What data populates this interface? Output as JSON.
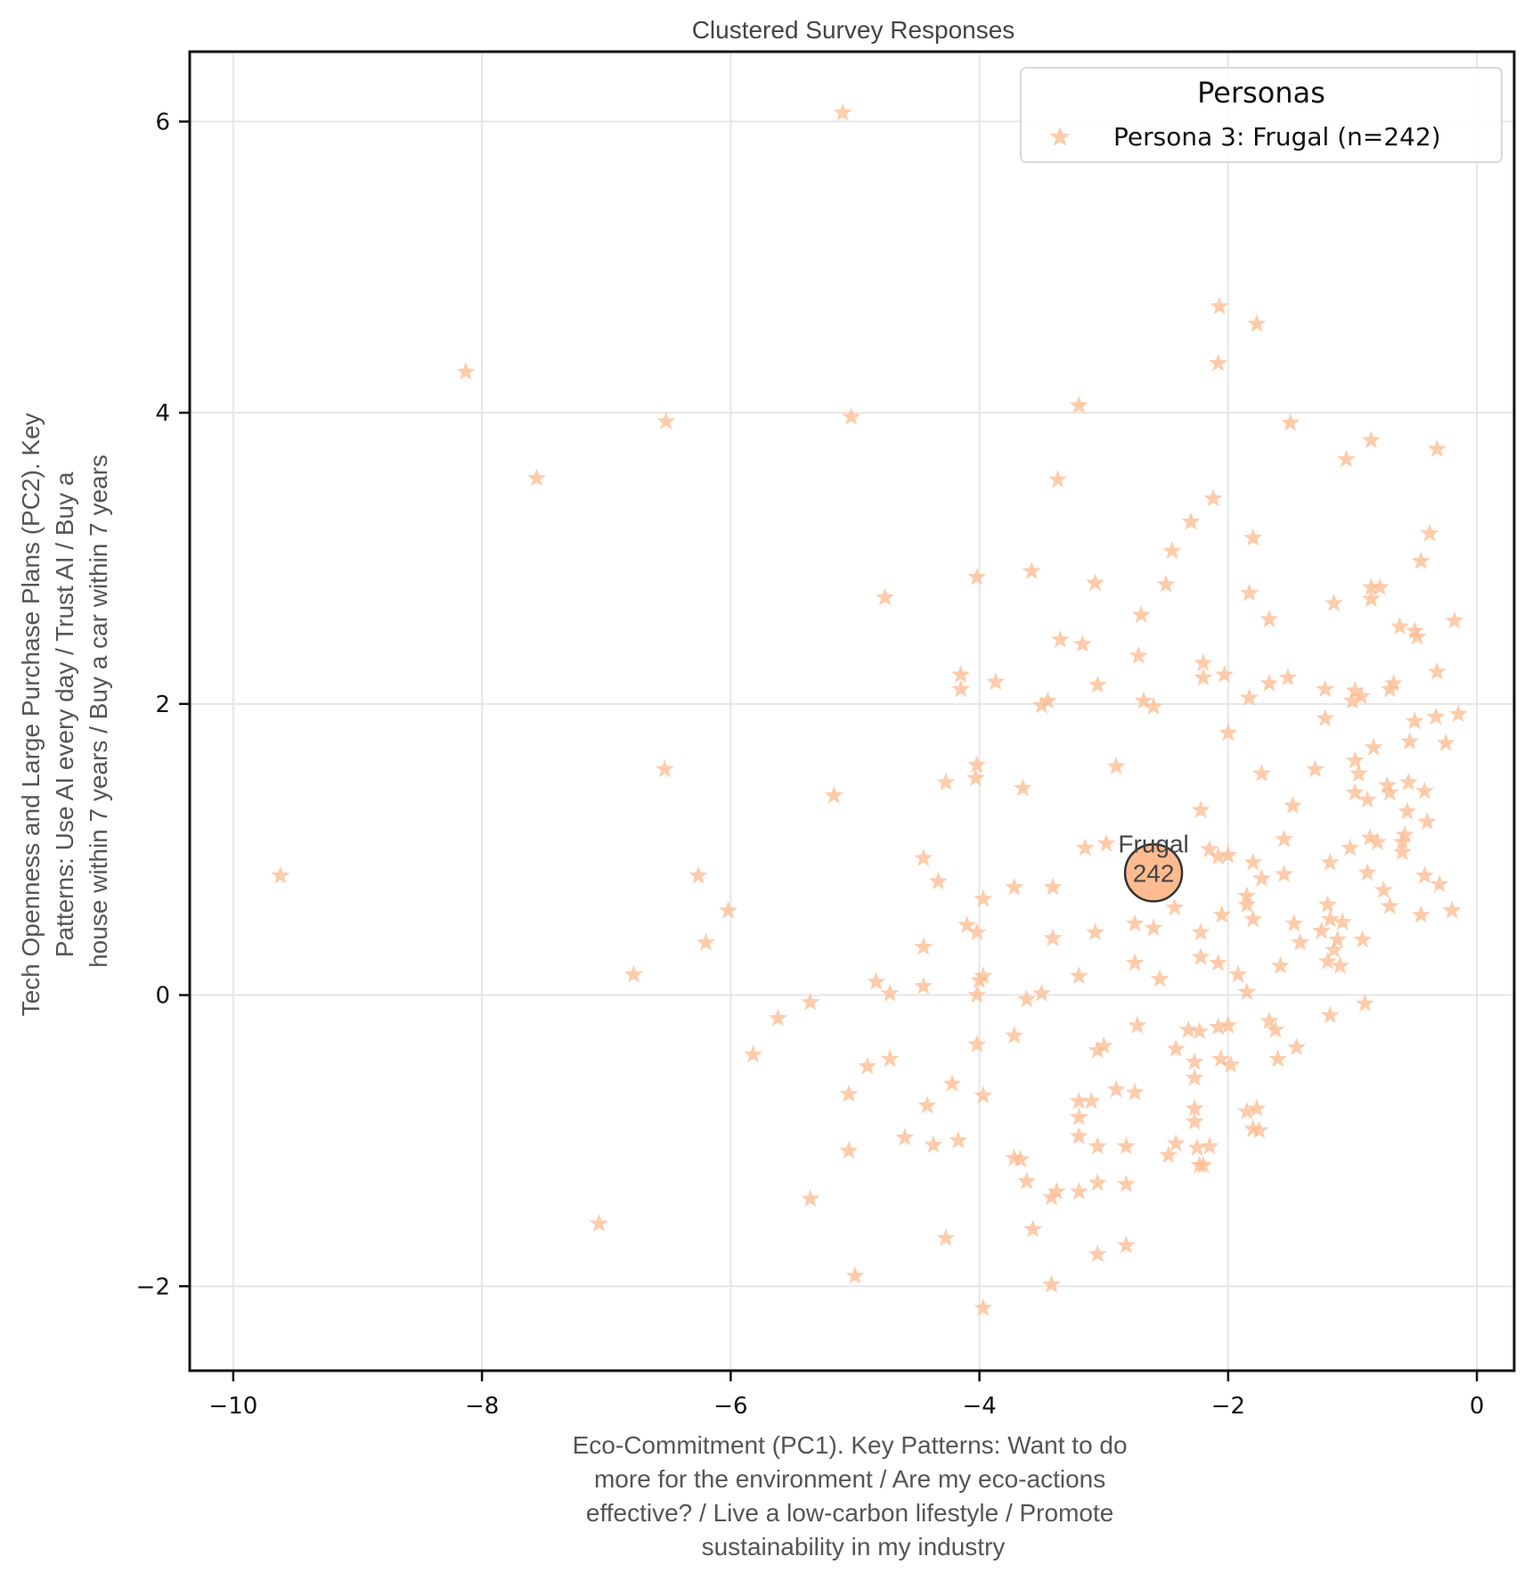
{
  "chart_data": {
    "type": "scatter",
    "title": "Clustered Survey Responses",
    "xlabel_lines": [
      "Eco-Commitment (PC1). Key Patterns: Want to do",
      "more for the environment / Are my eco-actions",
      "effective? / Live a low-carbon lifestyle / Promote",
      "sustainability in my industry"
    ],
    "ylabel_lines": [
      "Tech Openness and Large Purchase Plans (PC2). Key",
      "Patterns: Use AI every day / Trust AI / Buy a",
      "house within 7 years / Buy a car within 7 years"
    ],
    "xlim": [
      -10.35,
      0.3
    ],
    "ylim": [
      -2.58,
      6.48
    ],
    "xticks": [
      -10,
      -8,
      -6,
      -4,
      -2,
      0
    ],
    "xtick_labels": [
      "−10",
      "−8",
      "−6",
      "−4",
      "−2",
      "0"
    ],
    "yticks": [
      -2,
      0,
      2,
      4,
      6
    ],
    "ytick_labels": [
      "−2",
      "0",
      "2",
      "4",
      "6"
    ],
    "grid": true,
    "legend": {
      "title": "Personas",
      "placement": "top-right",
      "entries": [
        {
          "label": "Persona 3: Frugal (n=242)",
          "color": "#fdbb8f",
          "marker": "star"
        }
      ]
    },
    "series": [
      {
        "name": "Persona 3: Frugal (n=242)",
        "color": "#fdbb8f",
        "marker": "star",
        "points": [
          [
            -5.1,
            6.06
          ],
          [
            -8.13,
            4.28
          ],
          [
            -6.52,
            3.94
          ],
          [
            -5.03,
            3.97
          ],
          [
            -7.56,
            3.55
          ],
          [
            -9.62,
            0.82
          ],
          [
            -6.53,
            1.55
          ],
          [
            -6.26,
            0.82
          ],
          [
            -6.02,
            0.58
          ],
          [
            -6.2,
            0.36
          ],
          [
            -6.78,
            0.14
          ],
          [
            -7.06,
            -1.57
          ],
          [
            -5.82,
            -0.41
          ],
          [
            -5.62,
            -0.16
          ],
          [
            -5.36,
            -0.05
          ],
          [
            -5.17,
            1.37
          ],
          [
            -4.76,
            2.73
          ],
          [
            -5.05,
            -0.68
          ],
          [
            -5.05,
            -1.07
          ],
          [
            -5.0,
            -1.93
          ],
          [
            -5.36,
            -1.4
          ],
          [
            -4.9,
            -0.49
          ],
          [
            -4.83,
            0.09
          ],
          [
            -4.72,
            0.01
          ],
          [
            -4.72,
            -0.44
          ],
          [
            -4.6,
            -0.98
          ],
          [
            -4.45,
            0.94
          ],
          [
            -4.33,
            0.78
          ],
          [
            -4.45,
            0.33
          ],
          [
            -4.45,
            0.06
          ],
          [
            -4.42,
            -0.76
          ],
          [
            -4.37,
            -1.03
          ],
          [
            -4.27,
            -1.67
          ],
          [
            -4.27,
            1.46
          ],
          [
            -4.22,
            -0.61
          ],
          [
            -4.17,
            -1.0
          ],
          [
            -4.15,
            2.2
          ],
          [
            -4.15,
            2.1
          ],
          [
            -4.1,
            0.48
          ],
          [
            -4.03,
            1.49
          ],
          [
            -4.02,
            1.58
          ],
          [
            -4.02,
            2.87
          ],
          [
            -4.02,
            0.43
          ],
          [
            -4.0,
            0.1
          ],
          [
            -3.97,
            0.13
          ],
          [
            -3.97,
            0.66
          ],
          [
            -4.02,
            0.0
          ],
          [
            -4.02,
            -0.34
          ],
          [
            -3.97,
            -0.69
          ],
          [
            -3.97,
            -2.15
          ],
          [
            -3.87,
            2.15
          ],
          [
            -3.72,
            0.74
          ],
          [
            -3.72,
            -0.28
          ],
          [
            -3.72,
            -1.12
          ],
          [
            -3.67,
            -1.13
          ],
          [
            -3.65,
            1.42
          ],
          [
            -3.62,
            -0.03
          ],
          [
            -3.62,
            -1.28
          ],
          [
            -3.58,
            2.91
          ],
          [
            -3.57,
            -1.61
          ],
          [
            -3.5,
            1.99
          ],
          [
            -3.45,
            2.02
          ],
          [
            -3.5,
            0.01
          ],
          [
            -3.42,
            -1.39
          ],
          [
            -3.42,
            -1.99
          ],
          [
            -3.41,
            0.74
          ],
          [
            -3.41,
            0.39
          ],
          [
            -3.38,
            -1.35
          ],
          [
            -3.37,
            3.54
          ],
          [
            -3.35,
            2.44
          ],
          [
            -3.2,
            4.05
          ],
          [
            -3.17,
            2.41
          ],
          [
            -3.2,
            -0.73
          ],
          [
            -3.2,
            -0.84
          ],
          [
            -3.2,
            -0.97
          ],
          [
            -3.2,
            -1.35
          ],
          [
            -3.15,
            1.01
          ],
          [
            -3.2,
            0.13
          ],
          [
            -3.07,
            2.83
          ],
          [
            -3.05,
            2.13
          ],
          [
            -3.07,
            0.43
          ],
          [
            -3.05,
            -0.38
          ],
          [
            -3.0,
            -0.35
          ],
          [
            -3.05,
            -1.04
          ],
          [
            -3.05,
            -1.29
          ],
          [
            -3.05,
            -1.78
          ],
          [
            -3.1,
            -0.73
          ],
          [
            -2.98,
            1.04
          ],
          [
            -2.9,
            1.57
          ],
          [
            -2.9,
            -0.65
          ],
          [
            -2.82,
            -1.04
          ],
          [
            -2.82,
            -1.3
          ],
          [
            -2.82,
            -1.72
          ],
          [
            -2.75,
            0.49
          ],
          [
            -2.75,
            0.22
          ],
          [
            -2.73,
            -0.21
          ],
          [
            -2.75,
            -0.67
          ],
          [
            -2.7,
            2.61
          ],
          [
            -2.68,
            2.02
          ],
          [
            -2.6,
            1.98
          ],
          [
            -2.72,
            2.33
          ],
          [
            -2.6,
            0.46
          ],
          [
            -2.55,
            0.11
          ],
          [
            -2.5,
            2.82
          ],
          [
            -2.45,
            3.05
          ],
          [
            -2.43,
            0.6
          ],
          [
            -2.42,
            -0.37
          ],
          [
            -2.42,
            -1.02
          ],
          [
            -2.48,
            -1.1
          ],
          [
            -2.3,
            3.25
          ],
          [
            -2.32,
            -0.24
          ],
          [
            -2.27,
            -0.46
          ],
          [
            -2.27,
            -0.57
          ],
          [
            -2.27,
            -0.78
          ],
          [
            -2.27,
            -0.87
          ],
          [
            -2.25,
            -1.05
          ],
          [
            -2.23,
            -1.17
          ],
          [
            -2.23,
            -0.25
          ],
          [
            -2.22,
            0.43
          ],
          [
            -2.22,
            1.27
          ],
          [
            -2.2,
            2.28
          ],
          [
            -2.2,
            2.18
          ],
          [
            -2.22,
            0.26
          ],
          [
            -2.2,
            -1.17
          ],
          [
            -2.15,
            1.0
          ],
          [
            -2.15,
            -1.04
          ],
          [
            -2.12,
            3.41
          ],
          [
            -2.08,
            4.34
          ],
          [
            -2.07,
            4.73
          ],
          [
            -2.08,
            0.95
          ],
          [
            -2.08,
            0.22
          ],
          [
            -2.08,
            -0.22
          ],
          [
            -2.06,
            -0.44
          ],
          [
            -2.05,
            0.55
          ],
          [
            -2.03,
            2.2
          ],
          [
            -2.0,
            1.8
          ],
          [
            -2.0,
            0.96
          ],
          [
            -2.0,
            -0.21
          ],
          [
            -1.98,
            -0.48
          ],
          [
            -1.92,
            0.14
          ],
          [
            -1.85,
            0.68
          ],
          [
            -1.85,
            0.62
          ],
          [
            -1.85,
            0.02
          ],
          [
            -1.85,
            -0.8
          ],
          [
            -1.83,
            2.76
          ],
          [
            -1.83,
            2.04
          ],
          [
            -1.8,
            0.91
          ],
          [
            -1.8,
            0.52
          ],
          [
            -1.8,
            -0.92
          ],
          [
            -1.8,
            3.14
          ],
          [
            -1.77,
            -0.78
          ],
          [
            -1.75,
            -0.93
          ],
          [
            -1.73,
            1.52
          ],
          [
            -1.73,
            0.8
          ],
          [
            -1.77,
            4.61
          ],
          [
            -1.67,
            2.14
          ],
          [
            -1.67,
            2.58
          ],
          [
            -1.67,
            -0.18
          ],
          [
            -1.62,
            -0.24
          ],
          [
            -1.6,
            -0.44
          ],
          [
            -1.58,
            0.2
          ],
          [
            -1.55,
            1.07
          ],
          [
            -1.55,
            0.83
          ],
          [
            -1.52,
            2.18
          ],
          [
            -1.5,
            3.93
          ],
          [
            -1.48,
            1.3
          ],
          [
            -1.47,
            0.49
          ],
          [
            -1.45,
            -0.36
          ],
          [
            -1.42,
            0.36
          ],
          [
            -1.3,
            1.55
          ],
          [
            -1.25,
            0.44
          ],
          [
            -1.2,
            0.23
          ],
          [
            -1.22,
            2.1
          ],
          [
            -1.22,
            1.9
          ],
          [
            -1.2,
            0.62
          ],
          [
            -1.18,
            0.52
          ],
          [
            -1.15,
            0.31
          ],
          [
            -1.18,
            0.91
          ],
          [
            -1.18,
            -0.14
          ],
          [
            -1.15,
            2.69
          ],
          [
            -1.12,
            0.38
          ],
          [
            -1.1,
            0.2
          ],
          [
            -1.08,
            0.5
          ],
          [
            -1.05,
            3.68
          ],
          [
            -1.02,
            1.01
          ],
          [
            -1.0,
            2.02
          ],
          [
            -0.98,
            2.09
          ],
          [
            -0.98,
            1.61
          ],
          [
            -0.98,
            1.39
          ],
          [
            -0.95,
            1.52
          ],
          [
            -0.93,
            2.05
          ],
          [
            -0.92,
            0.38
          ],
          [
            -0.9,
            -0.06
          ],
          [
            -0.88,
            1.34
          ],
          [
            -0.88,
            0.84
          ],
          [
            -0.86,
            1.08
          ],
          [
            -0.85,
            2.72
          ],
          [
            -0.85,
            2.8
          ],
          [
            -0.85,
            3.81
          ],
          [
            -0.83,
            1.7
          ],
          [
            -0.8,
            1.05
          ],
          [
            -0.78,
            2.8
          ],
          [
            -0.75,
            0.72
          ],
          [
            -0.72,
            1.44
          ],
          [
            -0.7,
            1.39
          ],
          [
            -0.7,
            0.61
          ],
          [
            -0.7,
            2.1
          ],
          [
            -0.67,
            2.14
          ],
          [
            -0.62,
            2.53
          ],
          [
            -0.6,
            1.05
          ],
          [
            -0.6,
            0.98
          ],
          [
            -0.58,
            1.1
          ],
          [
            -0.56,
            1.26
          ],
          [
            -0.55,
            1.46
          ],
          [
            -0.54,
            1.74
          ],
          [
            -0.5,
            2.5
          ],
          [
            -0.5,
            1.88
          ],
          [
            -0.48,
            2.46
          ],
          [
            -0.45,
            2.98
          ],
          [
            -0.45,
            0.55
          ],
          [
            -0.42,
            0.82
          ],
          [
            -0.42,
            1.4
          ],
          [
            -0.4,
            1.19
          ],
          [
            -0.38,
            3.17
          ],
          [
            -0.33,
            1.91
          ],
          [
            -0.32,
            2.22
          ],
          [
            -0.32,
            3.75
          ],
          [
            -0.3,
            0.76
          ],
          [
            -0.25,
            1.73
          ],
          [
            -0.2,
            0.58
          ],
          [
            -0.18,
            2.57
          ],
          [
            -0.15,
            1.93
          ]
        ]
      }
    ],
    "centroids": [
      {
        "label": "Frugal",
        "count": "242",
        "x": -2.6,
        "y": 0.84,
        "color": "#fdbb8f"
      }
    ]
  }
}
